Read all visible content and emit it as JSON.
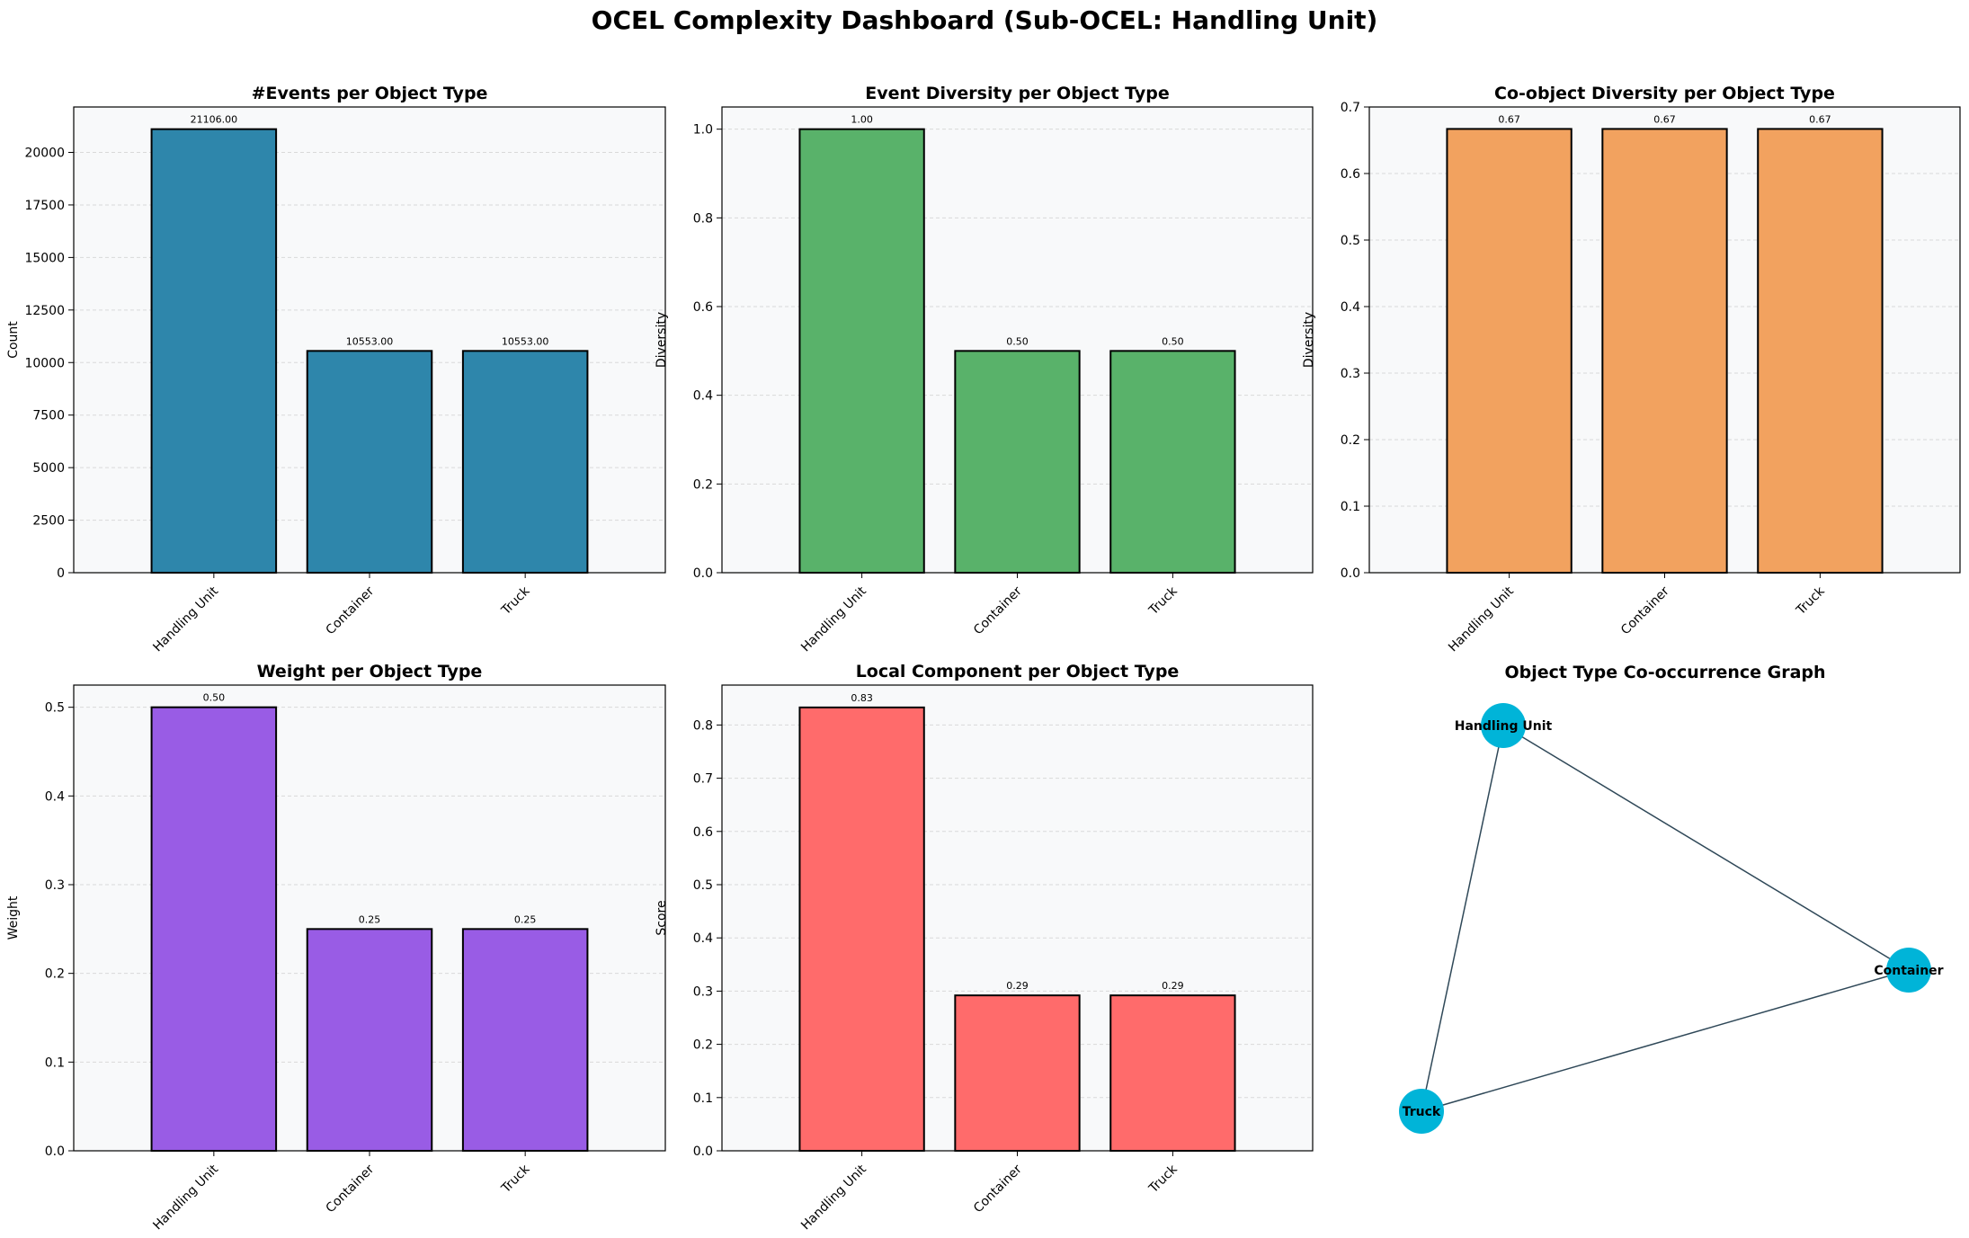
{
  "dashboard": {
    "title": "OCEL Complexity Dashboard (Sub-OCEL: Handling Unit)"
  },
  "chart_data": [
    {
      "type": "bar",
      "title": "#Events per Object Type",
      "xlabel": "",
      "ylabel": "Count",
      "categories": [
        "Handling Unit",
        "Container",
        "Truck"
      ],
      "values": [
        21106,
        10553,
        10553
      ],
      "value_labels": [
        "21106.00",
        "10553.00",
        "10553.00"
      ],
      "ylim": [
        0,
        22161
      ],
      "yticks": [
        0,
        2500,
        5000,
        7500,
        10000,
        12500,
        15000,
        17500,
        20000
      ],
      "ytick_labels": [
        "0",
        "2500",
        "5000",
        "7500",
        "10000",
        "12500",
        "15000",
        "17500",
        "20000"
      ],
      "color": "#2E86AB",
      "grid": "y"
    },
    {
      "type": "bar",
      "title": "Event Diversity per Object Type",
      "xlabel": "",
      "ylabel": "Diversity",
      "categories": [
        "Handling Unit",
        "Container",
        "Truck"
      ],
      "values": [
        1.0,
        0.5,
        0.5
      ],
      "value_labels": [
        "1.00",
        "0.50",
        "0.50"
      ],
      "ylim": [
        0,
        1.05
      ],
      "yticks": [
        0,
        0.2,
        0.4,
        0.6,
        0.8,
        1.0
      ],
      "ytick_labels": [
        "0.0",
        "0.2",
        "0.4",
        "0.6",
        "0.8",
        "1.0"
      ],
      "color": "#59B26A",
      "grid": "y"
    },
    {
      "type": "bar",
      "title": "Co-object Diversity per Object Type",
      "xlabel": "",
      "ylabel": "Diversity",
      "categories": [
        "Handling Unit",
        "Container",
        "Truck"
      ],
      "values": [
        0.667,
        0.667,
        0.667
      ],
      "value_labels": [
        "0.67",
        "0.67",
        "0.67"
      ],
      "ylim": [
        0,
        0.7
      ],
      "yticks": [
        0,
        0.1,
        0.2,
        0.3,
        0.4,
        0.5,
        0.6,
        0.7
      ],
      "ytick_labels": [
        "0.0",
        "0.1",
        "0.2",
        "0.3",
        "0.4",
        "0.5",
        "0.6",
        "0.7"
      ],
      "color": "#F2A25F",
      "grid": "y"
    },
    {
      "type": "bar",
      "title": "Weight per Object Type",
      "xlabel": "",
      "ylabel": "Weight",
      "categories": [
        "Handling Unit",
        "Container",
        "Truck"
      ],
      "values": [
        0.5,
        0.25,
        0.25
      ],
      "value_labels": [
        "0.50",
        "0.25",
        "0.25"
      ],
      "ylim": [
        0,
        0.525
      ],
      "yticks": [
        0,
        0.1,
        0.2,
        0.3,
        0.4,
        0.5
      ],
      "ytick_labels": [
        "0.0",
        "0.1",
        "0.2",
        "0.3",
        "0.4",
        "0.5"
      ],
      "color": "#995CE5",
      "grid": "y"
    },
    {
      "type": "bar",
      "title": "Local Component per Object Type",
      "xlabel": "",
      "ylabel": "Score",
      "categories": [
        "Handling Unit",
        "Container",
        "Truck"
      ],
      "values": [
        0.833,
        0.292,
        0.292
      ],
      "value_labels": [
        "0.83",
        "0.29",
        "0.29"
      ],
      "ylim": [
        0,
        0.875
      ],
      "yticks": [
        0,
        0.1,
        0.2,
        0.3,
        0.4,
        0.5,
        0.6,
        0.7,
        0.8
      ],
      "ytick_labels": [
        "0.0",
        "0.1",
        "0.2",
        "0.3",
        "0.4",
        "0.5",
        "0.6",
        "0.7",
        "0.8"
      ],
      "color": "#FF6B6B",
      "grid": "y"
    },
    {
      "type": "network",
      "title": "Object Type Co-occurrence Graph",
      "nodes": [
        "Handling Unit",
        "Container",
        "Truck"
      ],
      "edges": [
        [
          "Handling Unit",
          "Container"
        ],
        [
          "Handling Unit",
          "Truck"
        ],
        [
          "Container",
          "Truck"
        ]
      ],
      "node_color": "#00B4D8",
      "edge_color": "#2F4858"
    }
  ]
}
